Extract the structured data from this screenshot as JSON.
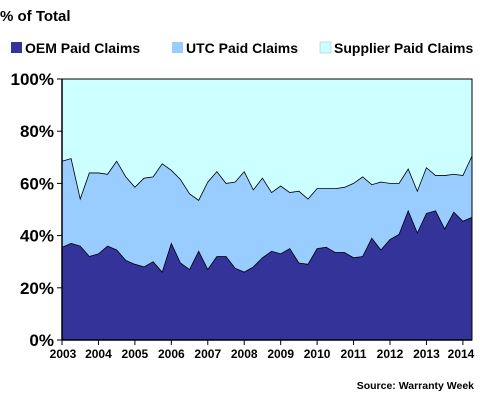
{
  "chart_data": {
    "type": "area",
    "stacked": true,
    "title": "",
    "ylabel": "% of Total",
    "xlabel": "",
    "source": "Source: Warranty Week",
    "ylim": [
      0,
      100
    ],
    "y_tick_labels": [
      "0%",
      "20%",
      "40%",
      "60%",
      "80%",
      "100%"
    ],
    "x_tick_labels": [
      "2003",
      "2004",
      "2005",
      "2006",
      "2007",
      "2008",
      "2009",
      "2010",
      "2011",
      "2012",
      "2013",
      "2014"
    ],
    "x_start": 2003.0,
    "x_step": 0.25,
    "grid": false,
    "legend_position": "top",
    "series": [
      {
        "name": "OEM Paid Claims",
        "color": "#333399",
        "values": [
          35.5,
          37,
          36,
          32,
          33,
          36,
          34.5,
          30.5,
          29,
          28,
          30,
          26,
          37,
          29.5,
          27,
          34,
          27,
          32,
          32,
          27.5,
          26,
          28,
          31.5,
          34,
          33,
          35,
          29.5,
          29,
          35,
          35.5,
          33.5,
          33.5,
          31.5,
          32,
          39,
          34.5,
          38.5,
          40.5,
          49.5,
          41,
          48.5,
          49.5,
          42.5,
          49,
          45.5,
          47
        ]
      },
      {
        "name": "UTC Paid Claims",
        "color": "#99ccff",
        "values": [
          33,
          32.5,
          18,
          32,
          31,
          27.5,
          34,
          32,
          29.5,
          34,
          32.5,
          41.5,
          28,
          32,
          29,
          19.5,
          33.5,
          32.5,
          28,
          33,
          38.5,
          29.5,
          30.5,
          22.5,
          26,
          21.5,
          27.5,
          25,
          23,
          22.5,
          24.5,
          25,
          28.5,
          30.5,
          20.5,
          26,
          21.5,
          19.5,
          16,
          16,
          17.5,
          13.5,
          20.5,
          14.5,
          17.5,
          23.5
        ]
      },
      {
        "name": "Supplier Paid Claims",
        "color": "#ccffff",
        "values": [
          31.5,
          30.5,
          46,
          36,
          36,
          36.5,
          31.5,
          37.5,
          41.5,
          38,
          37.5,
          32.5,
          35,
          38.5,
          44,
          46.5,
          39.5,
          35.5,
          40,
          39.5,
          35.5,
          42.5,
          38,
          43.5,
          41,
          43.5,
          43,
          46,
          42,
          42,
          42,
          41.5,
          40,
          37.5,
          40.5,
          39.5,
          40,
          40,
          34.5,
          43,
          34,
          37,
          37,
          36.5,
          37,
          29.5
        ]
      }
    ]
  }
}
